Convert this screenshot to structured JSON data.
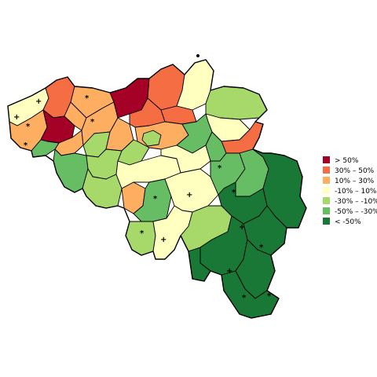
{
  "colors": {
    "gt50": "#a50026",
    "30to50": "#f46d43",
    "10to30": "#fdae61",
    "m10to10": "#ffffbf",
    "m30tom10": "#a6d96a",
    "m50tom30": "#66bd63",
    "ltm50": "#1a7837",
    "border": "#000000"
  },
  "legend": {
    "items": [
      {
        "key": "gt50",
        "label": "> 50%"
      },
      {
        "key": "30to50",
        "label": "30%  –  50%"
      },
      {
        "key": "10to30",
        "label": "10%  –  30%"
      },
      {
        "key": "m10to10",
        "label": "-10%  –  10%"
      },
      {
        "key": "m30tom10",
        "label": "-30%  – -10%"
      },
      {
        "key": "m50tom30",
        "label": "-50%  – -30%"
      },
      {
        "key": "ltm50",
        "label": "< -50%"
      }
    ]
  },
  "markers": {
    "plus": "+",
    "star": "*"
  }
}
